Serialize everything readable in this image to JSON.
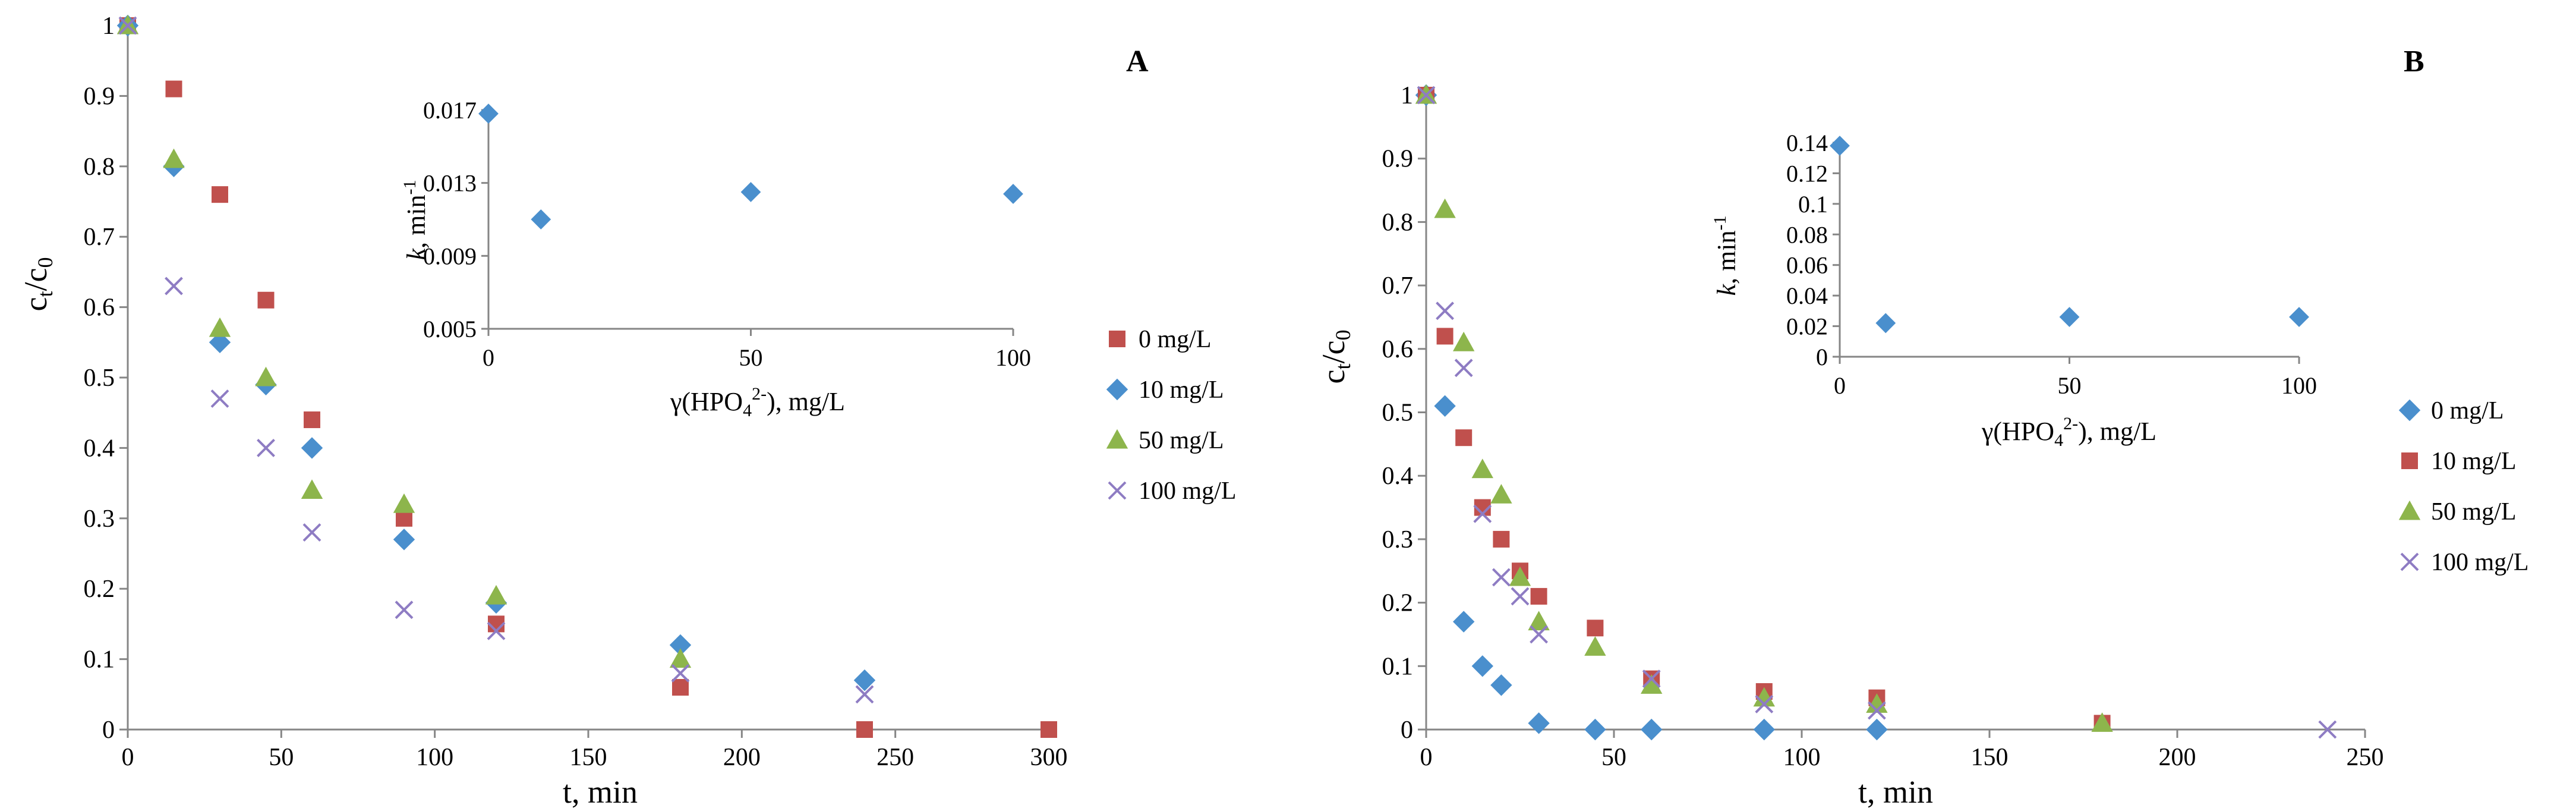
{
  "chart_data": [
    {
      "type": "scatter",
      "panel_label": "A",
      "xlabel": "t, min",
      "ylabel_main": "c",
      "ylabel_sub1": "t",
      "ylabel_slash": "/c",
      "ylabel_sub2": "0",
      "xlim": [
        0,
        300
      ],
      "ylim": [
        0,
        1
      ],
      "x_ticks": [
        0,
        50,
        100,
        150,
        200,
        250,
        300
      ],
      "y_ticks": [
        0,
        0.1,
        0.2,
        0.3,
        0.4,
        0.5,
        0.6,
        0.7,
        0.8,
        0.9,
        1
      ],
      "x_tick_labels": [
        "0",
        "50",
        "100",
        "150",
        "200",
        "250",
        "300"
      ],
      "y_tick_labels": [
        "0",
        "0.1",
        "0.2",
        "0.3",
        "0.4",
        "0.5",
        "0.6",
        "0.7",
        "0.8",
        "0.9",
        "1"
      ],
      "legend_position": "right",
      "series": [
        {
          "name": "0 mg/L",
          "marker": "square",
          "color": "#c0504d",
          "x": [
            0,
            15,
            30,
            45,
            60,
            90,
            120,
            180,
            240,
            300
          ],
          "y": [
            1.0,
            0.91,
            0.76,
            0.61,
            0.44,
            0.3,
            0.15,
            0.06,
            0.0,
            0.0
          ]
        },
        {
          "name": "10 mg/L",
          "marker": "diamond",
          "color": "#4a8fcd",
          "x": [
            0,
            15,
            30,
            45,
            60,
            90,
            120,
            180,
            240
          ],
          "y": [
            1.0,
            0.8,
            0.55,
            0.49,
            0.4,
            0.27,
            0.18,
            0.12,
            0.07
          ]
        },
        {
          "name": "50 mg/L",
          "marker": "triangle",
          "color": "#8db54c",
          "x": [
            0,
            15,
            30,
            45,
            60,
            90,
            120,
            180
          ],
          "y": [
            1.0,
            0.81,
            0.57,
            0.5,
            0.34,
            0.32,
            0.19,
            0.1
          ]
        },
        {
          "name": "100 mg/L",
          "marker": "x",
          "color": "#8e7cc3",
          "x": [
            0,
            15,
            30,
            45,
            60,
            90,
            120,
            180,
            240
          ],
          "y": [
            1.0,
            0.63,
            0.47,
            0.4,
            0.28,
            0.17,
            0.14,
            0.08,
            0.05
          ]
        }
      ],
      "inset": {
        "type": "scatter",
        "xlabel_prefix": "γ(HPO",
        "xlabel_sub": "4",
        "xlabel_sup": "2-",
        "xlabel_suffix": "), mg/L",
        "ylabel_italic": "k",
        "ylabel_rest": ", min",
        "ylabel_sup": "-1",
        "xlim": [
          0,
          100
        ],
        "ylim": [
          0.005,
          0.017
        ],
        "x_ticks": [
          0,
          50,
          100
        ],
        "y_ticks": [
          0.005,
          0.009,
          0.013,
          0.017
        ],
        "x_tick_labels": [
          "0",
          "50",
          "100"
        ],
        "y_tick_labels": [
          "0.005",
          "0.009",
          "0.013",
          "0.017"
        ],
        "marker": "diamond",
        "color": "#4a8fcd",
        "x": [
          0,
          10,
          50,
          100
        ],
        "y": [
          0.0168,
          0.011,
          0.0125,
          0.0124
        ]
      }
    },
    {
      "type": "scatter",
      "panel_label": "B",
      "xlabel": "t, min",
      "ylabel_main": "c",
      "ylabel_sub1": "t",
      "ylabel_slash": "/c",
      "ylabel_sub2": "0",
      "xlim": [
        0,
        250
      ],
      "ylim": [
        0,
        1
      ],
      "x_ticks": [
        0,
        50,
        100,
        150,
        200,
        250
      ],
      "y_ticks": [
        0,
        0.1,
        0.2,
        0.3,
        0.4,
        0.5,
        0.6,
        0.7,
        0.8,
        0.9,
        1
      ],
      "x_tick_labels": [
        "0",
        "50",
        "100",
        "150",
        "200",
        "250"
      ],
      "y_tick_labels": [
        "0",
        "0.1",
        "0.2",
        "0.3",
        "0.4",
        "0.5",
        "0.6",
        "0.7",
        "0.8",
        "0.9",
        "1"
      ],
      "legend_position": "right",
      "series": [
        {
          "name": "0 mg/L",
          "marker": "diamond",
          "color": "#4a8fcd",
          "x": [
            0,
            5,
            10,
            15,
            20,
            30,
            45,
            60,
            90,
            120
          ],
          "y": [
            1.0,
            0.51,
            0.17,
            0.1,
            0.07,
            0.01,
            0.0,
            0.0,
            0.0,
            0.0
          ]
        },
        {
          "name": "10 mg/L",
          "marker": "square",
          "color": "#c0504d",
          "x": [
            0,
            5,
            10,
            15,
            20,
            25,
            30,
            45,
            60,
            90,
            120,
            180
          ],
          "y": [
            1.0,
            0.62,
            0.46,
            0.35,
            0.3,
            0.25,
            0.21,
            0.16,
            0.08,
            0.06,
            0.05,
            0.01
          ]
        },
        {
          "name": "50 mg/L",
          "marker": "triangle",
          "color": "#8db54c",
          "x": [
            0,
            5,
            10,
            15,
            20,
            25,
            30,
            45,
            60,
            90,
            120,
            180
          ],
          "y": [
            1.0,
            0.82,
            0.61,
            0.41,
            0.37,
            0.24,
            0.17,
            0.13,
            0.07,
            0.05,
            0.04,
            0.01
          ]
        },
        {
          "name": "100 mg/L",
          "marker": "x",
          "color": "#8e7cc3",
          "x": [
            0,
            5,
            10,
            15,
            20,
            25,
            30,
            60,
            90,
            120,
            240
          ],
          "y": [
            1.0,
            0.66,
            0.57,
            0.34,
            0.24,
            0.21,
            0.15,
            0.08,
            0.04,
            0.03,
            0.0
          ]
        }
      ],
      "inset": {
        "type": "scatter",
        "xlabel_prefix": "γ(HPO",
        "xlabel_sub": "4",
        "xlabel_sup": "2-",
        "xlabel_suffix": "), mg/L",
        "ylabel_italic": "k",
        "ylabel_rest": ", min",
        "ylabel_sup": "-1",
        "xlim": [
          0,
          100
        ],
        "ylim": [
          0,
          0.14
        ],
        "x_ticks": [
          0,
          50,
          100
        ],
        "y_ticks": [
          0,
          0.02,
          0.04,
          0.06,
          0.08,
          0.1,
          0.12,
          0.14
        ],
        "x_tick_labels": [
          "0",
          "50",
          "100"
        ],
        "y_tick_labels": [
          "0",
          "0.02",
          "0.04",
          "0.06",
          "0.08",
          "0.1",
          "0.12",
          "0.14"
        ],
        "marker": "diamond",
        "color": "#4a8fcd",
        "x": [
          0,
          10,
          50,
          100
        ],
        "y": [
          0.138,
          0.022,
          0.026,
          0.026
        ]
      }
    }
  ]
}
